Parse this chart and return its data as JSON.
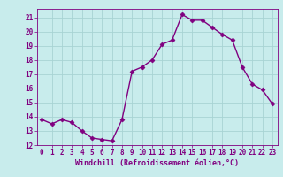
{
  "x": [
    0,
    1,
    2,
    3,
    4,
    5,
    6,
    7,
    8,
    9,
    10,
    11,
    12,
    13,
    14,
    15,
    16,
    17,
    18,
    19,
    20,
    21,
    22,
    23
  ],
  "y": [
    13.8,
    13.5,
    13.8,
    13.6,
    13.0,
    12.5,
    12.4,
    12.3,
    13.8,
    17.2,
    17.5,
    18.0,
    19.1,
    19.4,
    21.2,
    20.8,
    20.8,
    20.3,
    19.8,
    19.4,
    17.5,
    16.3,
    15.9,
    14.9
  ],
  "line_color": "#800080",
  "marker": "D",
  "marker_size": 2.5,
  "bg_color": "#c8ecec",
  "grid_color": "#a8d4d4",
  "xlabel": "Windchill (Refroidissement éolien,°C)",
  "ylim": [
    12,
    21.6
  ],
  "xlim": [
    -0.5,
    23.5
  ],
  "yticks": [
    12,
    13,
    14,
    15,
    16,
    17,
    18,
    19,
    20,
    21
  ],
  "xticks": [
    0,
    1,
    2,
    3,
    4,
    5,
    6,
    7,
    8,
    9,
    10,
    11,
    12,
    13,
    14,
    15,
    16,
    17,
    18,
    19,
    20,
    21,
    22,
    23
  ],
  "tick_label_fontsize": 5.5,
  "xlabel_fontsize": 6.0,
  "line_width": 1.0
}
